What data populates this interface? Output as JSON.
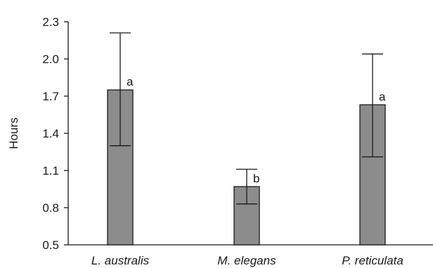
{
  "chart_data": {
    "type": "bar",
    "title": "",
    "xlabel": "",
    "ylabel": "Hours",
    "ylim": [
      0.5,
      2.3
    ],
    "yticks": [
      "0.5",
      "0.8",
      "1.1",
      "1.4",
      "1.7",
      "2.0",
      "2.3"
    ],
    "categories": [
      "L. australis",
      "M. elegans",
      "P. reticulata"
    ],
    "values": [
      1.75,
      0.97,
      1.63
    ],
    "error_upper": [
      2.21,
      1.11,
      2.04
    ],
    "error_lower": [
      1.3,
      0.83,
      1.21
    ],
    "significance_labels": [
      "a",
      "b",
      "a"
    ],
    "grid": false,
    "legend": "none",
    "bar_color": "#8c8c8c",
    "edge_color": "#1a1a1a"
  }
}
